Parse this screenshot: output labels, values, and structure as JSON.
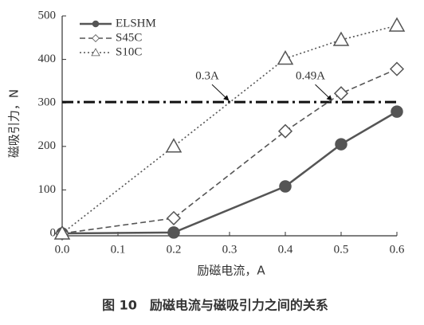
{
  "chart_data": {
    "type": "line",
    "x_label": "励磁电流，A",
    "y_label": "磁吸引力，N",
    "caption": "图 10　励磁电流与磁吸引力之间的关系",
    "x": [
      0,
      0.2,
      0.4,
      0.5,
      0.6
    ],
    "series": [
      {
        "name": "ELSHM",
        "color": "#555555",
        "dash": "solid",
        "marker": "circle",
        "values": [
          0,
          2,
          108,
          205,
          280
        ]
      },
      {
        "name": "S45C",
        "color": "#555555",
        "dash": "dashed",
        "marker": "diamond",
        "values": [
          0,
          35,
          235,
          322,
          378
        ]
      },
      {
        "name": "S10C",
        "color": "#555555",
        "dash": "dotted",
        "marker": "triangle",
        "values": [
          0,
          200,
          402,
          445,
          478
        ]
      }
    ],
    "hline": 302,
    "annotations": [
      {
        "text": "0.3A",
        "x": 0.3,
        "y": 302
      },
      {
        "text": "0.49A",
        "x": 0.485,
        "y": 302
      }
    ],
    "xlim": [
      0,
      0.6
    ],
    "xticks": [
      {
        "value": 0,
        "label": "0.0"
      },
      0.1,
      0.2,
      0.3,
      0.4,
      0.5,
      0.6
    ],
    "ylim": [
      0,
      500
    ],
    "yticks": [
      0,
      100,
      200,
      300,
      400,
      500
    ],
    "legend": "upper-left"
  }
}
